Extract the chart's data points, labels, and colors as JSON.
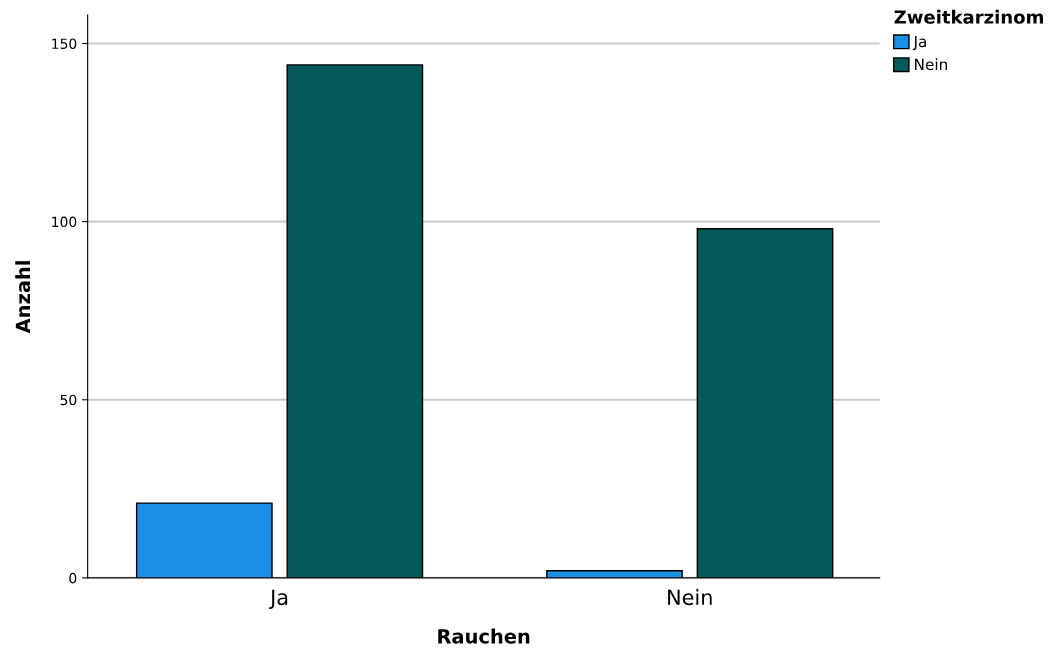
{
  "chart_data": {
    "type": "bar",
    "xlabel": "Rauchen",
    "ylabel": "Anzahl",
    "legend_title": "Zweitkarzinom",
    "categories": [
      "Ja",
      "Nein"
    ],
    "series": [
      {
        "name": "Ja",
        "color": "#1a8fe3",
        "values": [
          21,
          2
        ]
      },
      {
        "name": "Nein",
        "color": "#035a58",
        "values": [
          144,
          98
        ]
      }
    ],
    "ylim": [
      0,
      158
    ],
    "yticks": [
      0,
      50,
      100,
      150
    ],
    "grid": "y",
    "legend": "top right"
  }
}
